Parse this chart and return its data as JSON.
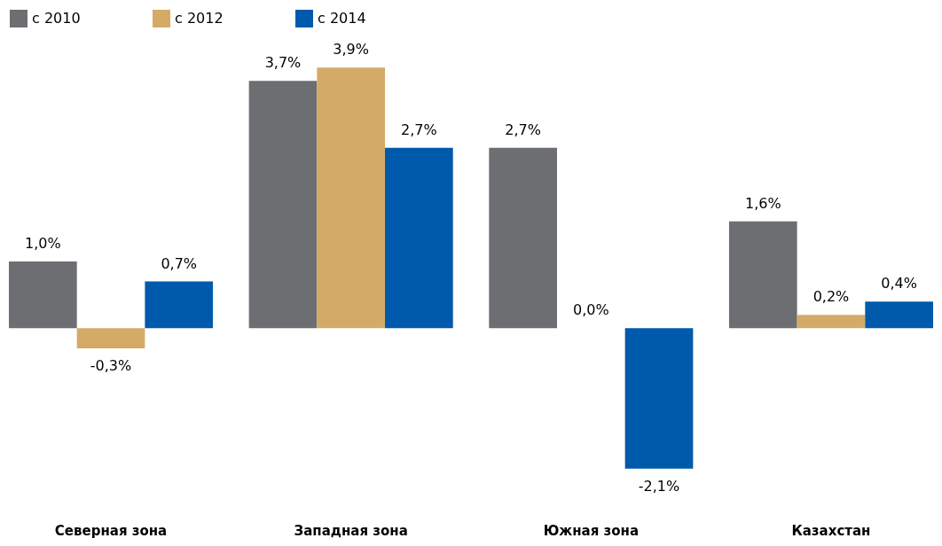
{
  "chart_data": {
    "type": "bar",
    "categories": [
      "Северная зона",
      "Западная зона",
      "Южная зона",
      "Казахстан"
    ],
    "series": [
      {
        "name": "с 2010",
        "color": "#6d6e71",
        "values": [
          1.0,
          3.7,
          2.7,
          1.6
        ],
        "value_labels": [
          "1,0%",
          "3,7%",
          "2,7%",
          "1,6%"
        ]
      },
      {
        "name": "с 2012",
        "color": "#d3ab67",
        "values": [
          -0.3,
          3.9,
          0.0,
          0.2
        ],
        "value_labels": [
          "-0,3%",
          "3,9%",
          "0,0%",
          "0,2%"
        ]
      },
      {
        "name": "с 2014",
        "color": "#005aab",
        "values": [
          0.7,
          2.7,
          -2.1,
          0.4
        ],
        "value_labels": [
          "0,7%",
          "2,7%",
          "-2,1%",
          "0,4%"
        ]
      }
    ],
    "legend": "top"
  }
}
